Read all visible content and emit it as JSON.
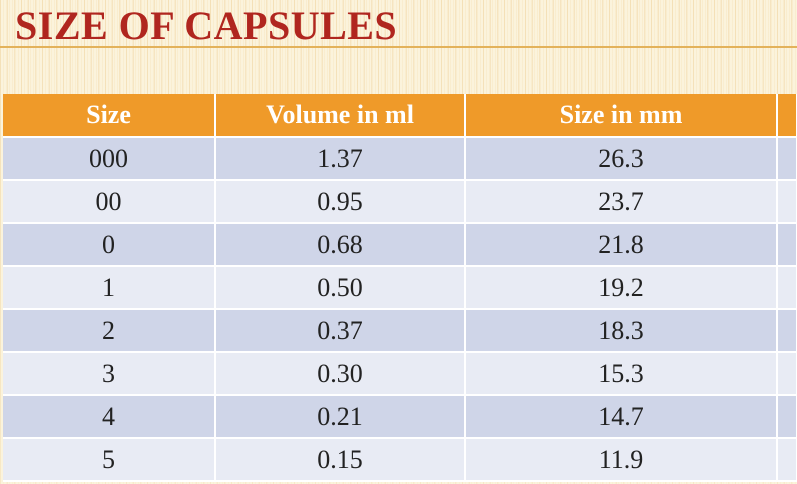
{
  "slide": {
    "title": "SIZE OF CAPSULES"
  },
  "table": {
    "headers": [
      "Size",
      "Volume in ml",
      "Size in mm"
    ],
    "rows": [
      [
        "000",
        "1.37",
        "26.3"
      ],
      [
        "00",
        "0.95",
        "23.7"
      ],
      [
        "0",
        "0.68",
        "21.8"
      ],
      [
        "1",
        "0.50",
        "19.2"
      ],
      [
        "2",
        "0.37",
        "18.3"
      ],
      [
        "3",
        "0.30",
        "15.3"
      ],
      [
        "4",
        "0.21",
        "14.7"
      ],
      [
        "5",
        "0.15",
        "11.9"
      ]
    ]
  },
  "colors": {
    "title": "#b0261f",
    "header_bg": "#ef9a29",
    "row_band_dark": "#cfd5e8",
    "row_band_light": "#e8ebf4",
    "background": "#fbf3dc"
  }
}
